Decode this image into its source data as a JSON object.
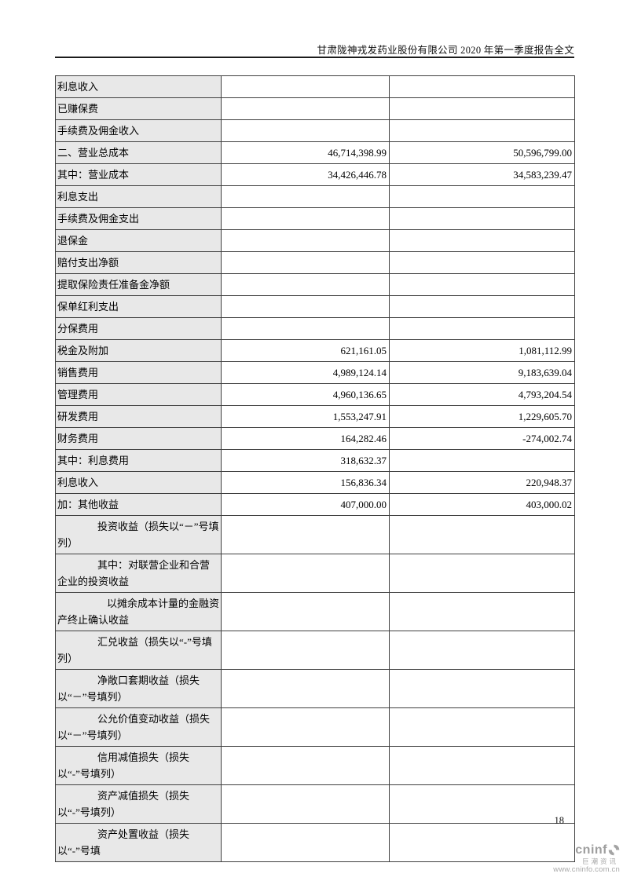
{
  "page": {
    "header_title": "甘肃陇神戎发药业股份有限公司 2020 年第一季度报告全文",
    "page_number": "18"
  },
  "table": {
    "rows": [
      {
        "label": "利息收入",
        "lvl": "sub3",
        "v1": "",
        "v2": ""
      },
      {
        "label": "已赚保费",
        "lvl": "sub3",
        "v1": "",
        "v2": ""
      },
      {
        "label": "手续费及佣金收入",
        "lvl": "sub3",
        "v1": "",
        "v2": ""
      },
      {
        "label": "二、营业总成本",
        "lvl": "section",
        "v1": "46,714,398.99",
        "v2": "50,596,799.00"
      },
      {
        "label": "其中：营业成本",
        "lvl": "sub1",
        "v1": "34,426,446.78",
        "v2": "34,583,239.47"
      },
      {
        "label": "利息支出",
        "lvl": "sub2",
        "v1": "",
        "v2": ""
      },
      {
        "label": "手续费及佣金支出",
        "lvl": "sub2",
        "v1": "",
        "v2": ""
      },
      {
        "label": "退保金",
        "lvl": "sub2",
        "v1": "",
        "v2": ""
      },
      {
        "label": "赔付支出净额",
        "lvl": "sub2",
        "v1": "",
        "v2": ""
      },
      {
        "label": "提取保险责任准备金净额",
        "lvl": "sub2",
        "v1": "",
        "v2": ""
      },
      {
        "label": "保单红利支出",
        "lvl": "sub2",
        "v1": "",
        "v2": ""
      },
      {
        "label": "分保费用",
        "lvl": "sub2",
        "v1": "",
        "v2": ""
      },
      {
        "label": "税金及附加",
        "lvl": "sub2",
        "v1": "621,161.05",
        "v2": "1,081,112.99"
      },
      {
        "label": "销售费用",
        "lvl": "sub2",
        "v1": "4,989,124.14",
        "v2": "9,183,639.04"
      },
      {
        "label": "管理费用",
        "lvl": "sub2",
        "v1": "4,960,136.65",
        "v2": "4,793,204.54"
      },
      {
        "label": "研发费用",
        "lvl": "sub2",
        "v1": "1,553,247.91",
        "v2": "1,229,605.70"
      },
      {
        "label": "财务费用",
        "lvl": "sub2",
        "v1": "164,282.46",
        "v2": "-274,002.74"
      },
      {
        "label": "其中：利息费用",
        "lvl": "sub2b",
        "v1": "318,632.37",
        "v2": ""
      },
      {
        "label": "利息收入",
        "lvl": "sub4",
        "v1": "156,836.34",
        "v2": "220,948.37"
      },
      {
        "label": "加：其他收益",
        "lvl": "sub1b",
        "v1": "407,000.00",
        "v2": "403,000.02"
      },
      {
        "label": "投资收益（损失以“－”号填列）",
        "lvl": "wrap",
        "v1": "",
        "v2": ""
      },
      {
        "label": "其中：对联营企业和合营企业的投资收益",
        "lvl": "wrap",
        "v1": "",
        "v2": ""
      },
      {
        "label": "以摊余成本计量的金融资产终止确认收益",
        "lvl": "wrapdeep",
        "v1": "",
        "v2": ""
      },
      {
        "label": "汇兑收益（损失以“-”号填列）",
        "lvl": "wrap",
        "v1": "",
        "v2": ""
      },
      {
        "label": "净敞口套期收益（损失以“－”号填列）",
        "lvl": "wrap",
        "v1": "",
        "v2": ""
      },
      {
        "label": "公允价值变动收益（损失以“－”号填列）",
        "lvl": "wrap",
        "v1": "",
        "v2": ""
      },
      {
        "label": "信用减值损失（损失以“-”号填列）",
        "lvl": "wrap",
        "v1": "",
        "v2": ""
      },
      {
        "label": "资产减值损失（损失以“-”号填列）",
        "lvl": "wrap",
        "v1": "",
        "v2": ""
      },
      {
        "label": "资产处置收益（损失以“-”号填",
        "lvl": "wrap",
        "v1": "",
        "v2": ""
      }
    ]
  },
  "footer_logo": {
    "brand": "cninf",
    "caption": "巨潮资讯",
    "url": "www.cninfo.com.cn"
  },
  "colors": {
    "label_cell_bg": "#e8e8e8",
    "table_border": "#404040",
    "logo_gray": "#a3a3a3",
    "text": "#000000"
  }
}
